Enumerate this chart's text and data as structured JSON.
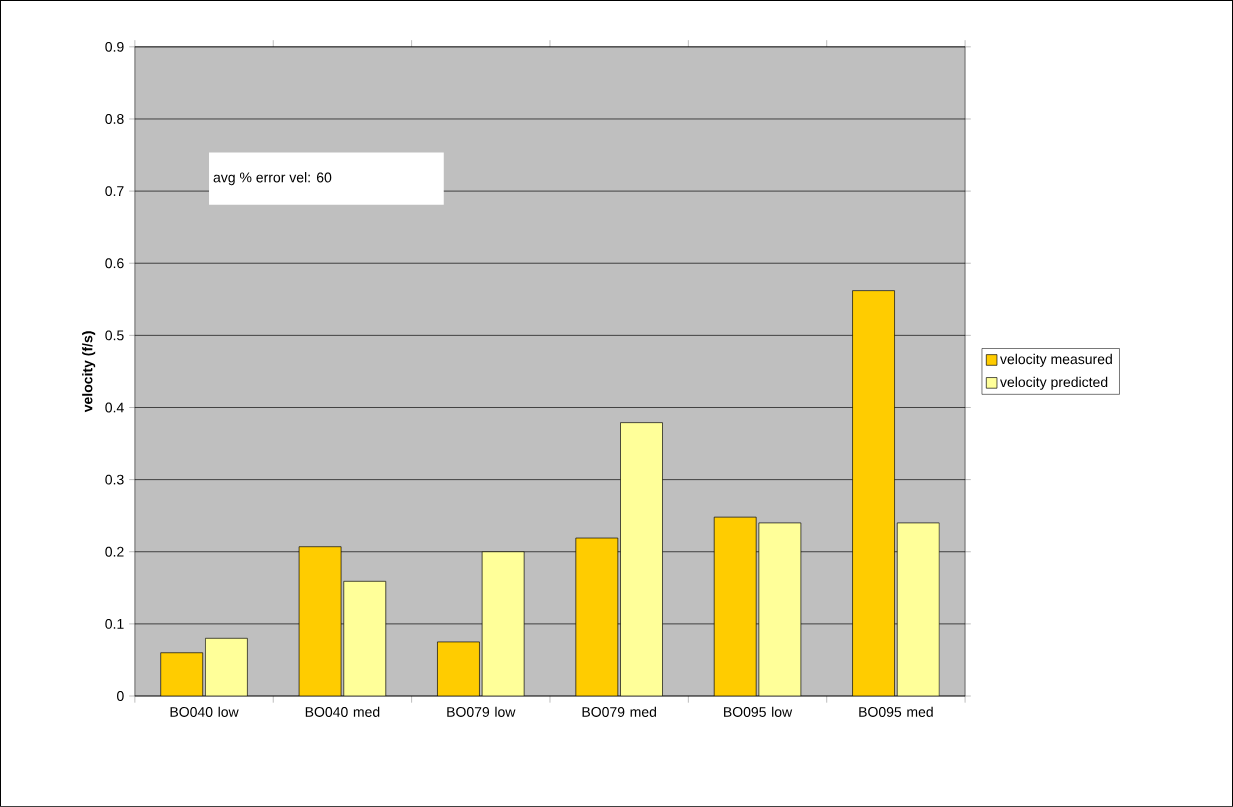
{
  "chart_data": {
    "type": "bar",
    "ylabel": "velocity (f/s)",
    "categories": [
      "BO040 low",
      "BO040 med",
      "BO079 low",
      "BO079 med",
      "BO095 low",
      "BO095 med"
    ],
    "series": [
      {
        "name": "velocity measured",
        "color": "#ffcc00",
        "values": [
          0.06,
          0.207,
          0.075,
          0.219,
          0.248,
          0.562
        ]
      },
      {
        "name": "velocity predicted",
        "color": "#ffff99",
        "values": [
          0.08,
          0.159,
          0.2,
          0.379,
          0.24,
          0.24
        ]
      }
    ],
    "ylim": [
      0,
      0.9
    ],
    "yticks": [
      0,
      0.1,
      0.2,
      0.3,
      0.4,
      0.5,
      0.6,
      0.7,
      0.8,
      0.9
    ],
    "grid": "y",
    "legend": "right",
    "annotations": [
      "avg % error vel: 60"
    ]
  }
}
